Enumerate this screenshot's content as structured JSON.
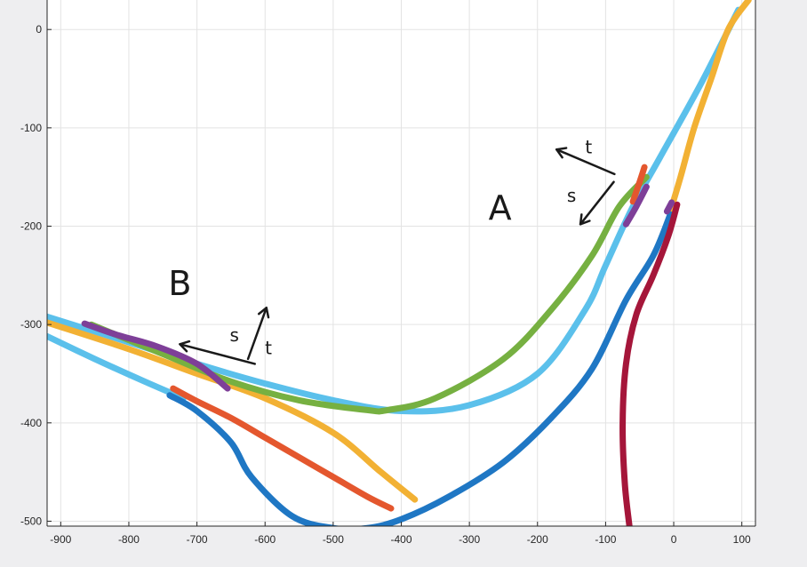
{
  "chart_data": {
    "type": "line",
    "title": "",
    "xlabel": "",
    "ylabel": "",
    "xlim": [
      -920,
      120
    ],
    "ylim": [
      -505,
      30
    ],
    "grid": true,
    "x_ticks": [
      -900,
      -800,
      -700,
      -600,
      -500,
      -400,
      -300,
      -200,
      -100,
      0,
      100
    ],
    "y_ticks": [
      0,
      -100,
      -200,
      -300,
      -400,
      -500
    ],
    "colors": {
      "sky": "#5bc0eb",
      "yellow": "#f2b134",
      "green": "#76b041",
      "blue": "#1f77c4",
      "crimson": "#a5163a",
      "orange": "#e4572e",
      "purple": "#7e3f98"
    },
    "series": [
      {
        "color": "sky",
        "x": [
          -920,
          -800,
          -700,
          -600,
          -500,
          -400,
          -300,
          -200,
          -130,
          -100,
          -60,
          -20,
          40,
          95
        ],
        "y": [
          -292,
          -318,
          -340,
          -360,
          -377,
          -388,
          -382,
          -350,
          -285,
          -240,
          -180,
          -130,
          -55,
          20
        ]
      },
      {
        "color": "yellow",
        "x": [
          -920,
          -800,
          -700,
          -600,
          -500,
          -430,
          -380
        ],
        "y": [
          -298,
          -325,
          -350,
          -375,
          -410,
          -450,
          -478
        ]
      },
      {
        "color": "yellow",
        "x": [
          -5,
          10,
          30,
          55,
          80,
          110
        ],
        "y": [
          -185,
          -150,
          -100,
          -50,
          0,
          30
        ]
      },
      {
        "color": "green",
        "x": [
          -855,
          -750,
          -650,
          -550,
          -450,
          -420,
          -350,
          -250,
          -180,
          -120,
          -80,
          -40
        ],
        "y": [
          -300,
          -330,
          -358,
          -377,
          -387,
          -387,
          -375,
          -335,
          -285,
          -230,
          -180,
          -150
        ]
      },
      {
        "color": "sky",
        "x": [
          -920,
          -850,
          -780,
          -720
        ],
        "y": [
          -312,
          -335,
          -357,
          -375
        ]
      },
      {
        "color": "blue",
        "x": [
          -740,
          -700,
          -650,
          -620,
          -560,
          -500,
          -450,
          -400,
          -330,
          -250,
          -180,
          -120,
          -70,
          -30,
          -5
        ],
        "y": [
          -372,
          -388,
          -420,
          -455,
          -495,
          -507,
          -507,
          -498,
          -475,
          -440,
          -395,
          -345,
          -275,
          -230,
          -188
        ]
      },
      {
        "color": "crimson",
        "x": [
          -65,
          -72,
          -75,
          -70,
          -55,
          -30,
          -8,
          5
        ],
        "y": [
          -505,
          -460,
          -400,
          -340,
          -290,
          -250,
          -210,
          -178
        ]
      },
      {
        "color": "orange",
        "x": [
          -735,
          -700,
          -650,
          -600,
          -550,
          -500,
          -450,
          -415
        ],
        "y": [
          -365,
          -378,
          -395,
          -415,
          -435,
          -455,
          -475,
          -487
        ]
      },
      {
        "color": "orange",
        "x": [
          -60,
          -50,
          -43
        ],
        "y": [
          -175,
          -155,
          -140
        ]
      },
      {
        "color": "purple",
        "x": [
          -865,
          -820,
          -760,
          -700,
          -655
        ],
        "y": [
          -299,
          -310,
          -322,
          -340,
          -365
        ]
      },
      {
        "color": "purple",
        "x": [
          -70,
          -55,
          -40
        ],
        "y": [
          -198,
          -180,
          -160
        ]
      },
      {
        "color": "purple",
        "x": [
          -10,
          -3
        ],
        "y": [
          -185,
          -176
        ]
      }
    ],
    "annotations": [
      {
        "text": "A",
        "x": -255,
        "y": -193,
        "size": "big"
      },
      {
        "text": "t",
        "x": -125,
        "y": -126,
        "size": "small"
      },
      {
        "text": "s",
        "x": -150,
        "y": -175,
        "size": "small"
      },
      {
        "text": "B",
        "x": -725,
        "y": -270,
        "size": "big"
      },
      {
        "text": "s",
        "x": -645,
        "y": -317,
        "size": "small"
      },
      {
        "text": "t",
        "x": -595,
        "y": -330,
        "size": "small"
      }
    ],
    "arrows": [
      {
        "name": "arrow-a-t",
        "from": [
          -87,
          -147
        ],
        "to": [
          -172,
          -122
        ]
      },
      {
        "name": "arrow-a-s",
        "from": [
          -88,
          -155
        ],
        "to": [
          -137,
          -198
        ]
      },
      {
        "name": "arrow-b-s",
        "from": [
          -615,
          -340
        ],
        "to": [
          -725,
          -320
        ]
      },
      {
        "name": "arrow-b-t",
        "from": [
          -625,
          -335
        ],
        "to": [
          -598,
          -283
        ]
      }
    ]
  }
}
